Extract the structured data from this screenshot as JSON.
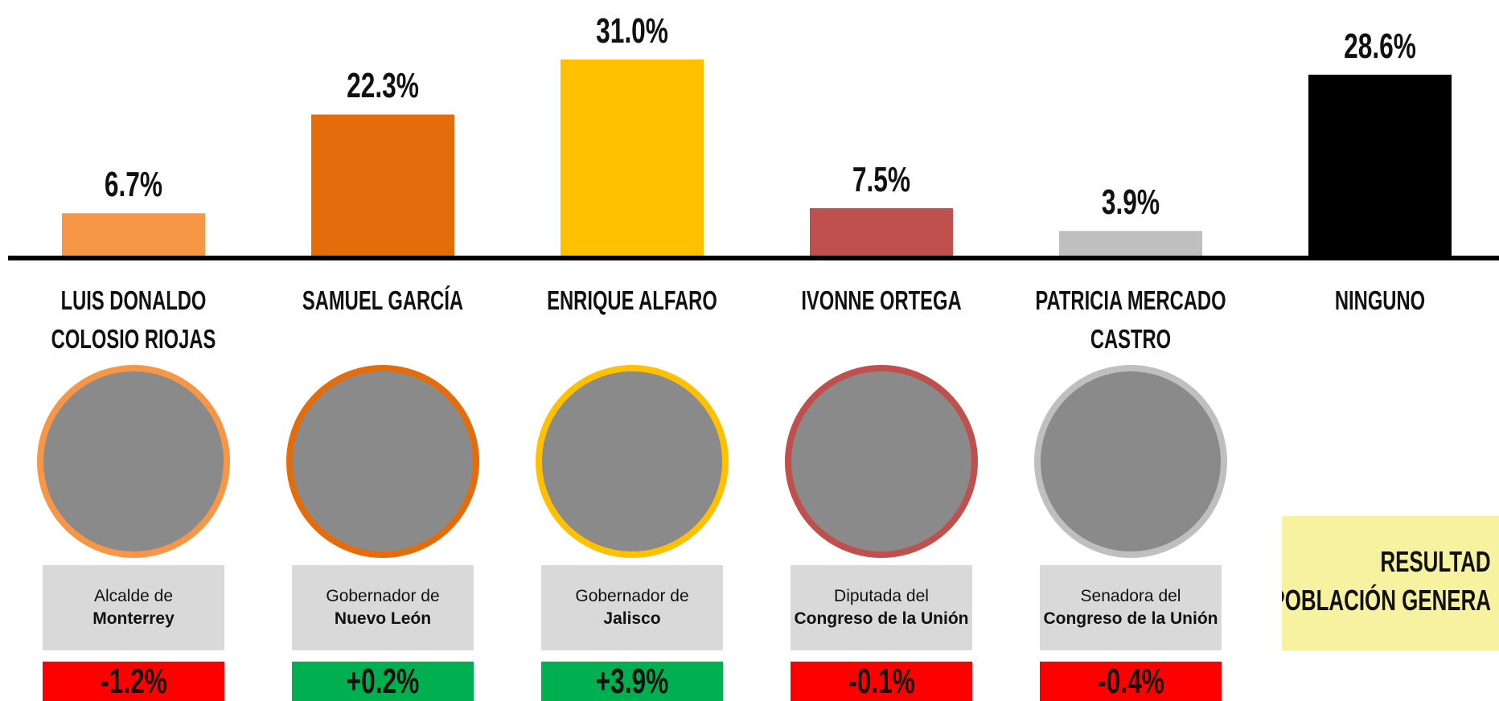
{
  "chart_data": {
    "type": "bar",
    "categories": [
      "LUIS DONALDO COLOSIO RIOJAS",
      "SAMUEL GARCÍA",
      "ENRIQUE ALFARO",
      "IVONNE ORTEGA",
      "PATRICIA MERCADO CASTRO",
      "NINGUNO"
    ],
    "values": [
      6.7,
      22.3,
      31.0,
      7.5,
      3.9,
      28.6
    ],
    "value_labels": [
      "6.7%",
      "22.3%",
      "31.0%",
      "7.5%",
      "3.9%",
      "28.6%"
    ],
    "colors": [
      "#f79646",
      "#e46c0a",
      "#ffc000",
      "#c0504d",
      "#bfbfbf",
      "#000000"
    ],
    "roles": [
      {
        "line": "Alcalde de",
        "bold": "Monterrey"
      },
      {
        "line": "Gobernador de",
        "bold": "Nuevo León"
      },
      {
        "line": "Gobernador de",
        "bold": "Jalisco"
      },
      {
        "line": "Diputada del",
        "bold": "Congreso de la Unión"
      },
      {
        "line": "Senadora del",
        "bold": "Congreso de la Unión"
      }
    ],
    "changes": {
      "values": [
        -1.2,
        0.2,
        3.9,
        -0.1,
        -0.4
      ],
      "value_labels": [
        "-1.2%",
        "+0.2%",
        "+3.9%",
        "-0.1%",
        "-0.4%"
      ],
      "positive_color": "#00b050",
      "negative_color": "#ff0000"
    },
    "note": [
      "RESULTAD",
      "POBLACIÓN GENERA"
    ]
  }
}
